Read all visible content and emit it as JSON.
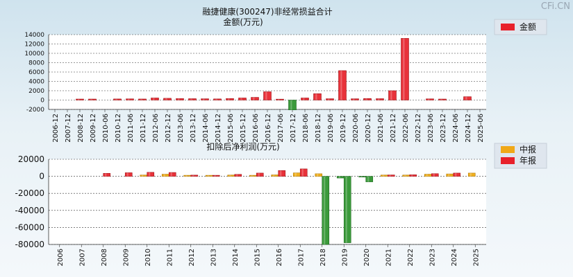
{
  "watermark": "CFi.CN",
  "chart_data": [
    {
      "type": "bar",
      "title": "融捷健康(300247)非经常损益合计",
      "subtitle": "金额(万元)",
      "legend": {
        "position": "top-right",
        "items": [
          {
            "name": "金额",
            "color": "#e8202a"
          }
        ]
      },
      "grid": true,
      "ylim": [
        -2000,
        14000
      ],
      "yticks": [
        14000,
        12000,
        10000,
        8000,
        6000,
        4000,
        2000,
        0,
        -2000
      ],
      "categories": [
        "2006-12",
        "2007-12",
        "2008-12",
        "2009-12",
        "2010-06",
        "2010-12",
        "2011-06",
        "2011-12",
        "2012-06",
        "2012-12",
        "2013-06",
        "2013-12",
        "2014-06",
        "2014-12",
        "2015-06",
        "2015-12",
        "2016-06",
        "2016-12",
        "2017-06",
        "2017-12",
        "2018-06",
        "2018-12",
        "2019-06",
        "2019-12",
        "2020-06",
        "2020-12",
        "2021-06",
        "2021-12",
        "2022-06",
        "2022-12",
        "2023-06",
        "2023-12",
        "2024-06",
        "2024-12",
        "2025-06"
      ],
      "series": [
        {
          "name": "金额",
          "values": [
            null,
            null,
            220,
            220,
            null,
            240,
            260,
            230,
            450,
            380,
            320,
            300,
            280,
            250,
            330,
            450,
            580,
            1780,
            200,
            -2100,
            450,
            1370,
            290,
            6300,
            280,
            340,
            300,
            2000,
            13200,
            null,
            260,
            220,
            null,
            720,
            null
          ]
        }
      ]
    },
    {
      "type": "bar",
      "title": "扣除后净利润(万元)",
      "legend": {
        "position": "top-right",
        "items": [
          {
            "name": "中报",
            "color": "#f0a818"
          },
          {
            "name": "年报",
            "color": "#e8202a"
          }
        ]
      },
      "grid": true,
      "ylim": [
        -80000,
        20000
      ],
      "yticks": [
        20000,
        0,
        -20000,
        -40000,
        -60000,
        -80000
      ],
      "categories": [
        "2006",
        "2007",
        "2008",
        "2009",
        "2010",
        "2011",
        "2012",
        "2013",
        "2014",
        "2015",
        "2016",
        "2017",
        "2018",
        "2019",
        "2020",
        "2021",
        "2022",
        "2023",
        "2024",
        "2025"
      ],
      "series": [
        {
          "name": "中报",
          "values": [
            null,
            null,
            null,
            null,
            1500,
            2500,
            1200,
            1200,
            1500,
            1200,
            1700,
            4000,
            3000,
            -2000,
            -900,
            1500,
            1500,
            2500,
            2800,
            3800
          ]
        },
        {
          "name": "年报",
          "values": [
            null,
            null,
            3500,
            4200,
            4700,
            4500,
            1400,
            1200,
            2300,
            3800,
            6800,
            8700,
            -82000,
            -78000,
            -6500,
            1600,
            1800,
            3100,
            3800,
            null
          ]
        }
      ]
    }
  ]
}
